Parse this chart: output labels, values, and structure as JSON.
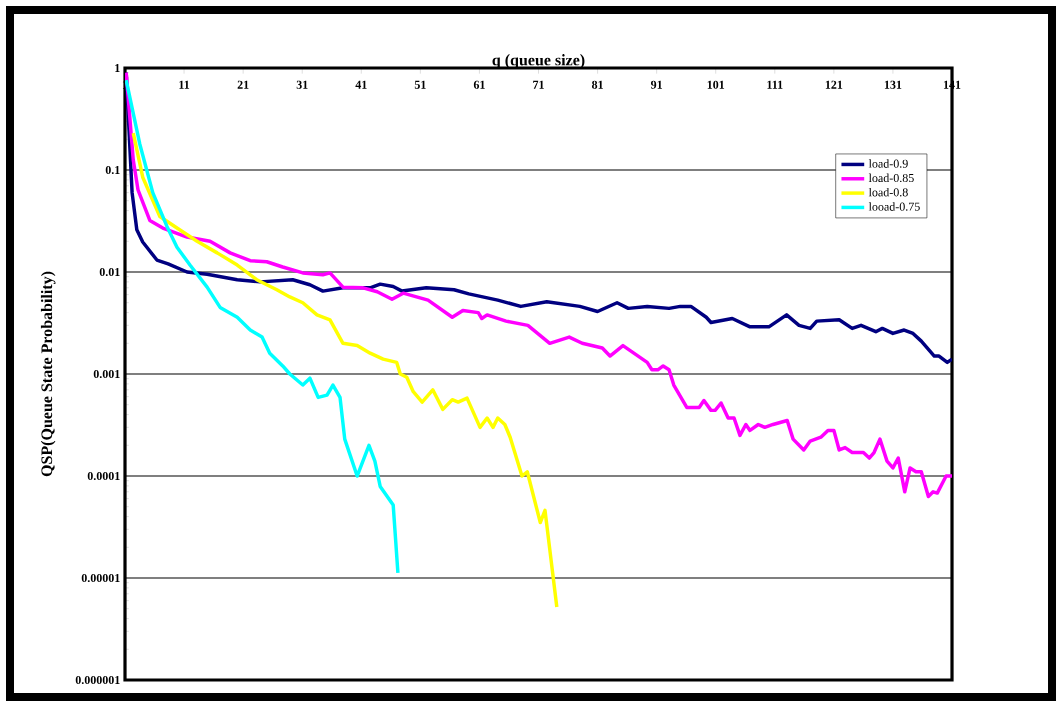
{
  "chart_data": {
    "type": "line",
    "xlabel": "q (queue size)",
    "ylabel": "QSP(Queue State Probability)",
    "xlim": [
      1,
      141
    ],
    "xticks": [
      1,
      11,
      21,
      31,
      41,
      51,
      61,
      71,
      81,
      91,
      101,
      111,
      121,
      131,
      141
    ],
    "ylim": [
      1e-06,
      1
    ],
    "yticks": [
      {
        "value": 1e-06,
        "label": "0.000001"
      },
      {
        "value": 1e-05,
        "label": "0.00001"
      },
      {
        "value": 0.0001,
        "label": "0.0001"
      },
      {
        "value": 0.001,
        "label": "0.001"
      },
      {
        "value": 0.01,
        "label": "0.01"
      },
      {
        "value": 0.1,
        "label": "0.1"
      },
      {
        "value": 1,
        "label": "1"
      }
    ],
    "log": "y",
    "grid": "y",
    "legend": "top right",
    "marker": "none",
    "line_style": "solid",
    "series": [
      {
        "name": "load-0.9",
        "color": "#000080",
        "x": [
          1.2,
          2.2,
          3,
          4,
          6.4,
          8.3,
          11.5,
          14.9,
          20,
          23.9,
          29.4,
          32.3,
          34.5,
          37.9,
          42.5,
          44.2,
          46.4,
          47.9,
          52,
          56.7,
          59.2,
          64.1,
          68,
          72.4,
          78,
          81,
          84.3,
          86.2,
          89.4,
          93.1,
          95,
          96.8,
          99.4,
          100.2,
          103.8,
          106.8,
          110,
          113,
          115.1,
          117,
          118.1,
          121.9,
          124.1,
          125.6,
          128.1,
          129.2,
          131,
          132.9,
          134.4,
          135.8,
          138,
          138.8,
          140.2,
          141
        ],
        "values": [
          0.9,
          0.06,
          0.026,
          0.0197,
          0.0131,
          0.012,
          0.01,
          0.0095,
          0.0084,
          0.008,
          0.0084,
          0.0075,
          0.0065,
          0.007,
          0.007,
          0.0076,
          0.0072,
          0.0065,
          0.007,
          0.0067,
          0.0061,
          0.0053,
          0.0046,
          0.0051,
          0.0046,
          0.0041,
          0.005,
          0.0044,
          0.0046,
          0.0044,
          0.0046,
          0.0046,
          0.0036,
          0.0032,
          0.0035,
          0.0029,
          0.0029,
          0.0038,
          0.003,
          0.0028,
          0.0033,
          0.0034,
          0.0028,
          0.003,
          0.0026,
          0.0028,
          0.0025,
          0.0027,
          0.0025,
          0.0021,
          0.0015,
          0.0015,
          0.0013,
          0.0014
        ]
      },
      {
        "name": "load-0.85",
        "color": "#ff00ff",
        "x": [
          1.2,
          2.4,
          3.2,
          5.2,
          7.4,
          11.5,
          15.4,
          18.8,
          22.2,
          25,
          27.7,
          31.1,
          34.5,
          35.7,
          37.9,
          41.3,
          43.7,
          46.2,
          48.1,
          52.3,
          56.4,
          58.2,
          60.8,
          61.4,
          62.3,
          65.5,
          69.2,
          72.9,
          76.2,
          78.4,
          81.8,
          83.1,
          85.3,
          89.4,
          90.2,
          91.2,
          92.1,
          93.1,
          93.9,
          96.1,
          98.2,
          99,
          100.2,
          100.9,
          101.9,
          103.1,
          104.1,
          105.1,
          106.1,
          106.8,
          108.2,
          109.3,
          110.7,
          113.1,
          114.1,
          115.9,
          117,
          118.8,
          120,
          121,
          121.9,
          122.9,
          124.1,
          126,
          127,
          127.8,
          128.8,
          130,
          131,
          131.9,
          133,
          133.9,
          134.9,
          135.8,
          137,
          137.8,
          138.5,
          140,
          141
        ],
        "values": [
          0.9,
          0.125,
          0.064,
          0.032,
          0.027,
          0.022,
          0.02,
          0.0154,
          0.0129,
          0.0126,
          0.0112,
          0.0098,
          0.0094,
          0.0098,
          0.0071,
          0.007,
          0.0064,
          0.0054,
          0.0062,
          0.0053,
          0.0036,
          0.0042,
          0.004,
          0.0035,
          0.0038,
          0.0033,
          0.003,
          0.002,
          0.0023,
          0.002,
          0.0018,
          0.0015,
          0.0019,
          0.0013,
          0.0011,
          0.0011,
          0.0012,
          0.0011,
          0.00078,
          0.00047,
          0.00047,
          0.00055,
          0.00044,
          0.00044,
          0.00052,
          0.00037,
          0.00037,
          0.00025,
          0.00032,
          0.00028,
          0.00032,
          0.0003,
          0.00032,
          0.00035,
          0.00023,
          0.00018,
          0.00022,
          0.00024,
          0.00028,
          0.00028,
          0.00018,
          0.00019,
          0.00017,
          0.00017,
          0.00015,
          0.00017,
          0.00023,
          0.00014,
          0.00012,
          0.00015,
          7e-05,
          0.00012,
          0.00011,
          0.00011,
          6.3e-05,
          7e-05,
          6.8e-05,
          0.0001,
          0.0001
        ]
      },
      {
        "name": "load-0.8",
        "color": "#ffff00",
        "x": [
          2.4,
          4,
          6.9,
          9.8,
          13.2,
          16.6,
          20,
          23.3,
          26.7,
          28.9,
          31.1,
          33.5,
          35.7,
          37.9,
          40.3,
          42.5,
          44.7,
          47,
          47.6,
          48.7,
          49.8,
          51.3,
          53.1,
          54.8,
          56.4,
          57.4,
          58.9,
          61.1,
          62.3,
          63.3,
          64.1,
          65.3,
          66.2,
          68.2,
          69.1,
          71.3,
          72.1,
          74.1
        ],
        "values": [
          0.23,
          0.085,
          0.035,
          0.027,
          0.02,
          0.0154,
          0.0117,
          0.0084,
          0.0067,
          0.0057,
          0.005,
          0.0038,
          0.0034,
          0.002,
          0.0019,
          0.0016,
          0.0014,
          0.0013,
          0.001,
          0.00093,
          0.00067,
          0.00053,
          0.0007,
          0.00045,
          0.00056,
          0.00053,
          0.00058,
          0.0003,
          0.00037,
          0.0003,
          0.00037,
          0.00032,
          0.00024,
          0.0001,
          0.00011,
          3.5e-05,
          4.6e-05,
          5.2e-06
        ]
      },
      {
        "name": "looad-0.75",
        "color": "#00ffff",
        "x": [
          1.2,
          3.5,
          5.7,
          8.1,
          9.8,
          12,
          14.9,
          17.1,
          20,
          22.2,
          24.2,
          25.5,
          27.7,
          28.9,
          31.1,
          32.3,
          33.7,
          35.2,
          36.2,
          37.4,
          38.2,
          40.3,
          42.3,
          43.3,
          44.2,
          46.4,
          47.2
        ],
        "values": [
          0.76,
          0.18,
          0.06,
          0.028,
          0.0175,
          0.0117,
          0.0071,
          0.0045,
          0.0036,
          0.0027,
          0.0023,
          0.0016,
          0.0012,
          0.001,
          0.00078,
          0.00091,
          0.00059,
          0.00062,
          0.00078,
          0.00059,
          0.00023,
          0.0001,
          0.0002,
          0.00014,
          7.9e-05,
          5.2e-05,
          1.12e-05
        ]
      }
    ]
  }
}
